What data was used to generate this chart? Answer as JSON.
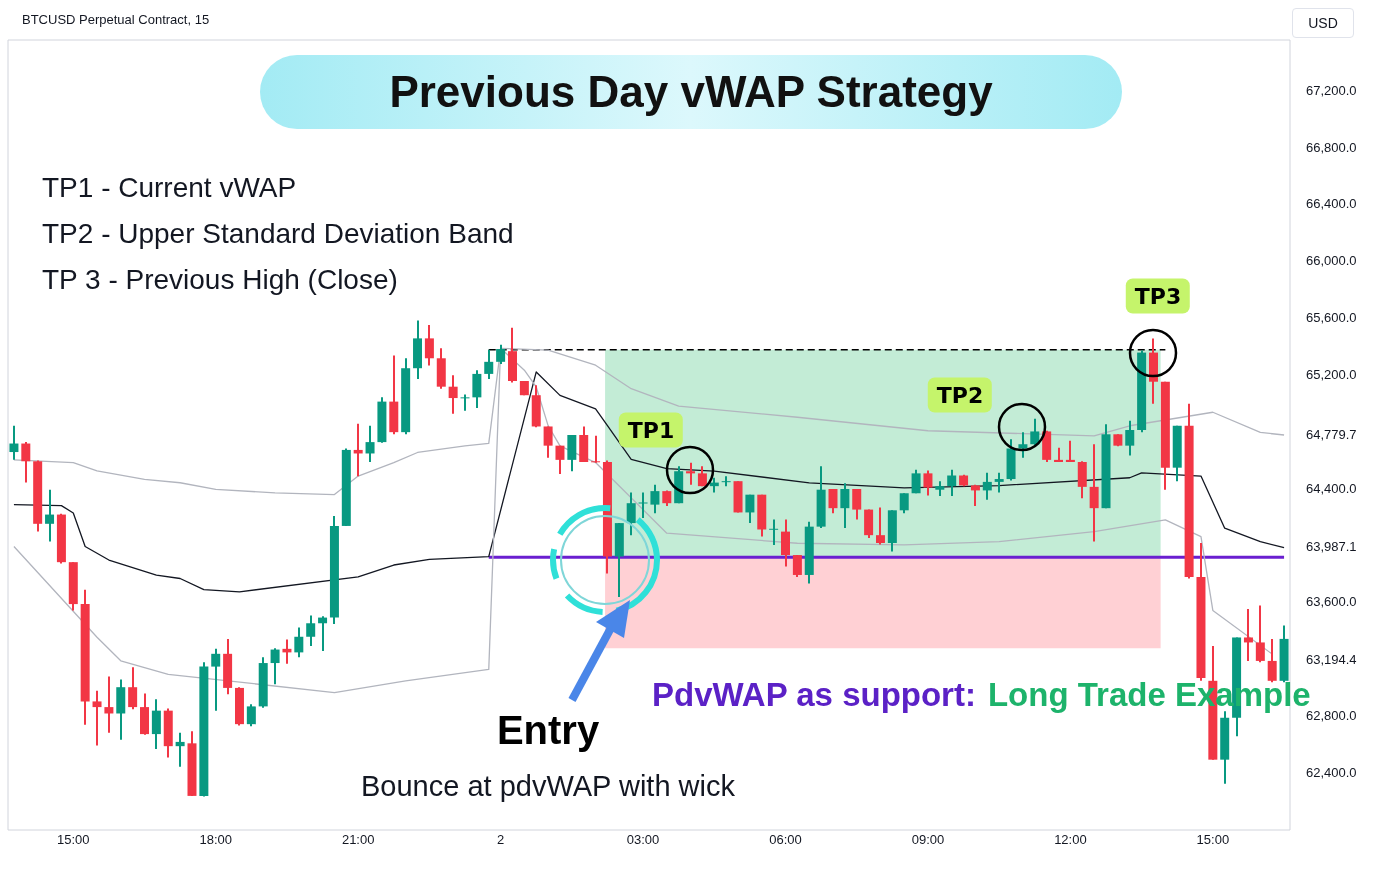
{
  "chart_data": {
    "type": "candlestick",
    "title": "Previous Day vWAP Strategy",
    "subtitle": "BTCUSD Perpetual Contract, 15",
    "ylabel": "USD",
    "categories": [
      null,
      null,
      null,
      null,
      null,
      "15:00",
      null,
      null,
      null,
      null,
      null,
      null,
      null,
      null,
      null,
      null,
      null,
      "18:00",
      null,
      null,
      null,
      null,
      null,
      null,
      null,
      null,
      null,
      null,
      null,
      "21:00",
      null,
      null,
      null,
      null,
      null,
      null,
      null,
      null,
      null,
      null,
      null,
      "2",
      null,
      null,
      null,
      null,
      null,
      null,
      null,
      null,
      null,
      null,
      null,
      "03:00",
      null,
      null,
      null,
      null,
      null,
      null,
      null,
      null,
      null,
      null,
      null,
      "06:00",
      null,
      null,
      null,
      null,
      null,
      null,
      null,
      null,
      null,
      null,
      null,
      "09:00",
      null,
      null,
      null,
      null,
      null,
      null,
      null,
      null,
      null,
      null,
      null,
      "12:00",
      null,
      null,
      null,
      null,
      null,
      null,
      null,
      null,
      null,
      null,
      null,
      "15:00",
      null,
      null,
      null,
      null,
      null,
      null
    ],
    "ohlc": [
      [
        64660,
        64845,
        64605,
        64720
      ],
      [
        64720,
        64730,
        64445,
        64595
      ],
      [
        64595,
        64600,
        64100,
        64155
      ],
      [
        64155,
        64395,
        64030,
        64220
      ],
      [
        64220,
        64225,
        63875,
        63885
      ],
      [
        63885,
        63885,
        63545,
        63590
      ],
      [
        63590,
        63690,
        62740,
        62905
      ],
      [
        62905,
        62980,
        62595,
        62865
      ],
      [
        62865,
        63080,
        62685,
        62820
      ],
      [
        62820,
        63060,
        62635,
        63005
      ],
      [
        63005,
        63145,
        62850,
        62865
      ],
      [
        62865,
        62960,
        62670,
        62675
      ],
      [
        62675,
        62920,
        62570,
        62840
      ],
      [
        62840,
        62855,
        62510,
        62590
      ],
      [
        62590,
        62685,
        62445,
        62620
      ],
      [
        62610,
        62695,
        62240,
        62240
      ],
      [
        62240,
        63180,
        62235,
        63150
      ],
      [
        63150,
        63275,
        62840,
        63240
      ],
      [
        63240,
        63345,
        62955,
        63000
      ],
      [
        63000,
        63005,
        62735,
        62745
      ],
      [
        62745,
        62885,
        62730,
        62870
      ],
      [
        62870,
        63215,
        62860,
        63175
      ],
      [
        63175,
        63280,
        63025,
        63270
      ],
      [
        63275,
        63340,
        63170,
        63250
      ],
      [
        63250,
        63425,
        63215,
        63360
      ],
      [
        63360,
        63510,
        63295,
        63455
      ],
      [
        63455,
        63505,
        63260,
        63495
      ],
      [
        63495,
        64210,
        63450,
        64140
      ],
      [
        64140,
        64685,
        64140,
        64675
      ],
      [
        64675,
        64860,
        64490,
        64650
      ],
      [
        64650,
        64845,
        64590,
        64730
      ],
      [
        64730,
        65045,
        64725,
        65015
      ],
      [
        65015,
        65340,
        64785,
        64800
      ],
      [
        64800,
        65320,
        64785,
        65250
      ],
      [
        65250,
        65585,
        65175,
        65460
      ],
      [
        65460,
        65555,
        65270,
        65320
      ],
      [
        65320,
        65390,
        65105,
        65120
      ],
      [
        65120,
        65200,
        64930,
        65040
      ],
      [
        65040,
        65065,
        64950,
        65045
      ],
      [
        65045,
        65235,
        64970,
        65210
      ],
      [
        65210,
        65380,
        65175,
        65295
      ],
      [
        65295,
        65415,
        65280,
        65385
      ],
      [
        65370,
        65535,
        65150,
        65160
      ],
      [
        65160,
        65160,
        65060,
        65060
      ],
      [
        65060,
        65130,
        64835,
        64840
      ],
      [
        64840,
        64840,
        64620,
        64705
      ],
      [
        64705,
        64705,
        64505,
        64605
      ],
      [
        64605,
        64780,
        64525,
        64780
      ],
      [
        64780,
        64840,
        64590,
        64590
      ],
      [
        64595,
        64775,
        64585,
        64590
      ],
      [
        64590,
        64600,
        63805,
        63925
      ],
      [
        63925,
        64160,
        63640,
        64160
      ],
      [
        64160,
        64375,
        64075,
        64300
      ],
      [
        64300,
        64375,
        64195,
        64305
      ],
      [
        64290,
        64430,
        64230,
        64385
      ],
      [
        64385,
        64390,
        64280,
        64300
      ],
      [
        64300,
        64560,
        64300,
        64525
      ],
      [
        64525,
        64585,
        64430,
        64510
      ],
      [
        64510,
        64560,
        64420,
        64420
      ],
      [
        64420,
        64480,
        64375,
        64445
      ],
      [
        64450,
        64490,
        64420,
        64455
      ],
      [
        64455,
        64455,
        64235,
        64235
      ],
      [
        64235,
        64360,
        64160,
        64360
      ],
      [
        64360,
        64360,
        64065,
        64115
      ],
      [
        64115,
        64185,
        64005,
        64120
      ],
      [
        64100,
        64185,
        63855,
        63935
      ],
      [
        63935,
        63935,
        63780,
        63795
      ],
      [
        63795,
        64170,
        63735,
        64135
      ],
      [
        64135,
        64560,
        64125,
        64395
      ],
      [
        64400,
        64400,
        64230,
        64265
      ],
      [
        64265,
        64440,
        64125,
        64400
      ],
      [
        64400,
        64400,
        64185,
        64255
      ],
      [
        64255,
        64255,
        64055,
        64075
      ],
      [
        64075,
        64270,
        64010,
        64020
      ],
      [
        64020,
        64250,
        63960,
        64250
      ],
      [
        64250,
        64370,
        64230,
        64370
      ],
      [
        64370,
        64535,
        64370,
        64510
      ],
      [
        64510,
        64530,
        64355,
        64410
      ],
      [
        64395,
        64455,
        64350,
        64420
      ],
      [
        64420,
        64535,
        64350,
        64495
      ],
      [
        64495,
        64500,
        64420,
        64425
      ],
      [
        64425,
        64430,
        64280,
        64390
      ],
      [
        64390,
        64515,
        64325,
        64450
      ],
      [
        64450,
        64515,
        64375,
        64470
      ],
      [
        64470,
        64750,
        64460,
        64685
      ],
      [
        64685,
        64800,
        64620,
        64715
      ],
      [
        64715,
        64895,
        64705,
        64805
      ],
      [
        64805,
        64810,
        64590,
        64605
      ],
      [
        64605,
        64690,
        64590,
        64590
      ],
      [
        64605,
        64740,
        64590,
        64590
      ],
      [
        64590,
        64595,
        64335,
        64415
      ],
      [
        64415,
        64715,
        64030,
        64265
      ],
      [
        64265,
        64855,
        64265,
        64785
      ],
      [
        64785,
        64785,
        64700,
        64705
      ],
      [
        64705,
        64880,
        64635,
        64815
      ],
      [
        64815,
        65375,
        64800,
        65360
      ],
      [
        65360,
        65460,
        65000,
        65155
      ],
      [
        65155,
        65155,
        64395,
        64550
      ],
      [
        64550,
        64845,
        64455,
        64845
      ],
      [
        64845,
        65000,
        63770,
        63780
      ],
      [
        63780,
        64020,
        63050,
        63070
      ],
      [
        63050,
        63295,
        62495,
        62495
      ],
      [
        62495,
        62835,
        62325,
        62790
      ],
      [
        62790,
        63355,
        62660,
        63355
      ],
      [
        63355,
        63555,
        63190,
        63320
      ],
      [
        63320,
        63580,
        63180,
        63190
      ],
      [
        63190,
        63345,
        63040,
        63050
      ],
      [
        63050,
        63440,
        63040,
        63345
      ]
    ],
    "colors": [
      "#089981",
      "#f23645",
      "#f23645",
      "#089981",
      "#f23645",
      "#f23645",
      "#f23645",
      "#f23645",
      "#f23645",
      "#089981",
      "#f23645",
      "#f23645",
      "#089981",
      "#f23645",
      "#089981",
      "#f23645",
      "#089981",
      "#089981",
      "#f23645",
      "#f23645",
      "#089981",
      "#089981",
      "#089981",
      "#f23645",
      "#089981",
      "#089981",
      "#089981",
      "#089981",
      "#089981",
      "#f23645",
      "#089981",
      "#089981",
      "#f23645",
      "#089981",
      "#089981",
      "#f23645",
      "#f23645",
      "#f23645",
      "#089981",
      "#089981",
      "#089981",
      "#089981",
      "#f23645",
      "#f23645",
      "#f23645",
      "#f23645",
      "#f23645",
      "#089981",
      "#f23645",
      "#f23645",
      "#f23645",
      "#089981",
      "#089981",
      "#089981",
      "#089981",
      "#f23645",
      "#089981",
      "#f23645",
      "#f23645",
      "#089981",
      "#089981",
      "#f23645",
      "#089981",
      "#f23645",
      "#089981",
      "#f23645",
      "#f23645",
      "#089981",
      "#089981",
      "#f23645",
      "#089981",
      "#f23645",
      "#f23645",
      "#f23645",
      "#089981",
      "#089981",
      "#089981",
      "#f23645",
      "#089981",
      "#089981",
      "#f23645",
      "#f23645",
      "#089981",
      "#089981",
      "#089981",
      "#089981",
      "#089981",
      "#f23645",
      "#f23645",
      "#f23645",
      "#f23645",
      "#f23645",
      "#089981",
      "#f23645",
      "#089981",
      "#089981",
      "#f23645",
      "#f23645",
      "#089981",
      "#f23645",
      "#f23645",
      "#f23645",
      "#089981",
      "#089981",
      "#f23645",
      "#f23645",
      "#f23645",
      "#089981"
    ],
    "series": [
      {
        "type": "line",
        "color": "#b2b5be",
        "values": [
          64605,
          null,
          null,
          null,
          null,
          64586,
          null,
          64527,
          null,
          null,
          null,
          64468,
          null,
          null,
          64444,
          null,
          null,
          64397,
          null,
          null,
          null,
          null,
          64373,
          null,
          null,
          null,
          null,
          64361,
          null,
          64491,
          null,
          null,
          64586,
          null,
          64657,
          null,
          null,
          null,
          64704,
          null,
          64721,
          65390,
          null,
          null,
          null,
          65378,
          null,
          null,
          null,
          65271,
          null,
          null,
          65106,
          null,
          null,
          null,
          64983,
          null,
          null,
          null,
          null,
          null,
          null,
          null,
          null,
          null,
          64905,
          null,
          null,
          null,
          null,
          null,
          null,
          null,
          null,
          null,
          null,
          64810,
          null,
          null,
          null,
          null,
          null,
          null,
          null,
          null,
          null,
          null,
          null,
          null,
          null,
          64774,
          null,
          null,
          64845,
          null,
          null,
          null,
          null,
          null,
          null,
          64940,
          null,
          null,
          null,
          64798,
          null,
          64780
        ]
      },
      {
        "type": "line",
        "color": "#b2b5be",
        "values": [
          63995,
          null,
          null,
          null,
          null,
          null,
          null,
          63357,
          null,
          63191,
          null,
          null,
          null,
          63096,
          null,
          null,
          null,
          null,
          null,
          null,
          null,
          null,
          null,
          null,
          null,
          null,
          null,
          62967,
          null,
          null,
          null,
          null,
          null,
          63050,
          null,
          null,
          null,
          null,
          null,
          null,
          63130,
          65390,
          null,
          65236,
          65118,
          64846,
          64704,
          null,
          null,
          64586,
          null,
          null,
          null,
          null,
          null,
          64089,
          null,
          null,
          null,
          null,
          null,
          null,
          null,
          null,
          null,
          null,
          64018,
          null,
          null,
          null,
          null,
          null,
          null,
          null,
          null,
          64006,
          null,
          null,
          null,
          null,
          null,
          null,
          null,
          64030,
          null,
          null,
          null,
          null,
          null,
          null,
          null,
          64100,
          null,
          null,
          null,
          null,
          null,
          64183,
          null,
          null,
          64065,
          63545,
          null,
          null,
          null,
          null,
          63238,
          null
        ]
      },
      {
        "type": "line",
        "color": "#131722",
        "values": [
          64290,
          null,
          null,
          null,
          64283,
          64231,
          63995,
          null,
          63900,
          null,
          null,
          null,
          63794,
          null,
          63770,
          null,
          63692,
          null,
          null,
          63676,
          null,
          null,
          null,
          null,
          null,
          null,
          null,
          null,
          null,
          63782,
          null,
          null,
          63865,
          null,
          null,
          63905,
          null,
          null,
          null,
          null,
          63924,
          null,
          null,
          null,
          65224,
          null,
          65059,
          null,
          null,
          64964,
          64846,
          null,
          64609,
          null,
          null,
          64543,
          null,
          null,
          null,
          64526,
          null,
          null,
          null,
          null,
          null,
          null,
          null,
          64443,
          null,
          null,
          null,
          null,
          null,
          null,
          null,
          64408,
          null,
          null,
          null,
          null,
          null,
          null,
          null,
          64424,
          null,
          null,
          null,
          null,
          null,
          null,
          null,
          null,
          null,
          null,
          64479,
          64514,
          null,
          null,
          null,
          null,
          64491,
          null,
          64124,
          null,
          null,
          64030,
          null,
          63987
        ]
      },
      {
        "type": "line",
        "color": "#6a1fd0",
        "values": [
          null,
          null,
          null,
          null,
          null,
          null,
          null,
          null,
          null,
          null,
          null,
          null,
          null,
          null,
          null,
          null,
          null,
          null,
          null,
          null,
          null,
          null,
          null,
          null,
          null,
          null,
          null,
          null,
          null,
          null,
          null,
          null,
          null,
          null,
          null,
          null,
          null,
          null,
          null,
          null,
          63920,
          null,
          null,
          null,
          null,
          null,
          null,
          null,
          null,
          null,
          null,
          null,
          null,
          null,
          null,
          null,
          null,
          null,
          null,
          null,
          null,
          null,
          null,
          null,
          null,
          null,
          null,
          null,
          null,
          null,
          null,
          null,
          null,
          null,
          null,
          null,
          null,
          null,
          null,
          null,
          null,
          null,
          null,
          null,
          null,
          null,
          null,
          null,
          null,
          null,
          null,
          null,
          null,
          null,
          null,
          null,
          null,
          null,
          null,
          null,
          null,
          null,
          null,
          null,
          null,
          null,
          null,
          63920
        ]
      },
      {
        "type": "line",
        "color": "#000000",
        "line_style": "dashed",
        "values": [
          null,
          null,
          null,
          null,
          null,
          null,
          null,
          null,
          null,
          null,
          null,
          null,
          null,
          null,
          null,
          null,
          null,
          null,
          null,
          null,
          null,
          null,
          null,
          null,
          null,
          null,
          null,
          null,
          null,
          null,
          null,
          null,
          null,
          null,
          null,
          null,
          null,
          null,
          null,
          null,
          65380,
          null,
          null,
          null,
          null,
          null,
          null,
          null,
          null,
          null,
          null,
          null,
          null,
          null,
          null,
          null,
          null,
          null,
          null,
          null,
          null,
          null,
          null,
          null,
          null,
          null,
          null,
          null,
          null,
          null,
          null,
          null,
          null,
          null,
          null,
          null,
          null,
          null,
          null,
          null,
          null,
          null,
          null,
          null,
          null,
          null,
          null,
          null,
          null,
          null,
          null,
          null,
          null,
          null,
          null,
          null,
          null,
          65380,
          null,
          null,
          null,
          null,
          null,
          null,
          null,
          null,
          null,
          null
        ]
      }
    ],
    "bands": [
      {
        "axis": "y",
        "from": 63920,
        "to": 65380,
        "color": "#c3ecd6"
      },
      {
        "axis": "y",
        "from": 63280,
        "to": 63920,
        "color": "#ffd0d4"
      }
    ],
    "ylim": [
      62000,
      67560
    ],
    "yticks": [
      {
        "value": 62400,
        "label": "62,400.0"
      },
      {
        "value": 62800,
        "label": "62,800.0"
      },
      {
        "value": 63194.4,
        "label": "63,194.4"
      },
      {
        "value": 63600,
        "label": "63,600.0"
      },
      {
        "value": 63987.1,
        "label": "63,987.1"
      },
      {
        "value": 64400,
        "label": "64,400.0"
      },
      {
        "value": 64779.7,
        "label": "64,779.7"
      },
      {
        "value": 65200,
        "label": "65,200.0"
      },
      {
        "value": 65600,
        "label": "65,600.0"
      },
      {
        "value": 66000,
        "label": "66,000.0"
      },
      {
        "value": 66400,
        "label": "66,400.0"
      },
      {
        "value": 66800,
        "label": "66,800.0"
      },
      {
        "value": 67200,
        "label": "67,200.0"
      }
    ],
    "annotations": [
      "TP1 - Current vWAP",
      "TP2 - Upper Standard Deviation Band",
      "TP 3 - Previous High (Close)",
      "TP1",
      "TP2",
      "TP3",
      "Entry",
      "Bounce at pdvWAP with wick",
      "PdvWAP as support:",
      "Long Trade Example"
    ]
  }
}
